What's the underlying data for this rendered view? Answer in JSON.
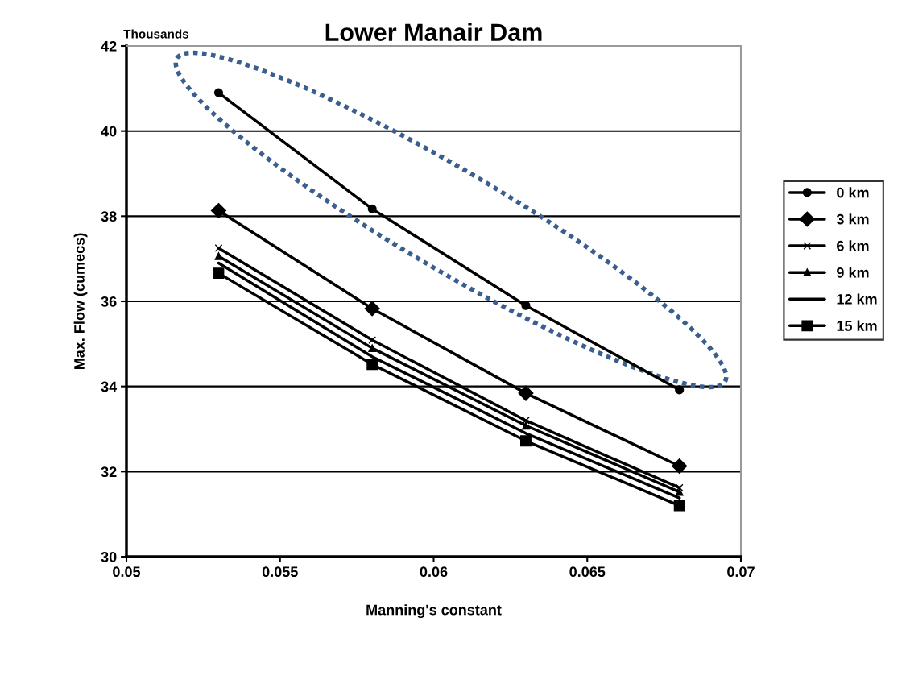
{
  "chart_data": {
    "type": "line",
    "title": "Lower Manair Dam",
    "xlabel": "Manning's constant",
    "ylabel": "Max. Flow (cumecs)",
    "annotations": [
      "Thousands"
    ],
    "x": [
      0.053,
      0.058,
      0.063,
      0.068
    ],
    "xlim": [
      0.05,
      0.07
    ],
    "xticks": [
      0.05,
      0.055,
      0.06,
      0.065,
      0.07
    ],
    "ylim": [
      30,
      42
    ],
    "yticks": [
      30,
      32,
      34,
      36,
      38,
      40,
      42
    ],
    "grid": "y",
    "legend": "right",
    "line_style": "solid",
    "series": [
      {
        "name": "0 km",
        "color": "#000000",
        "marker": "circle",
        "values": [
          40.9,
          38.17,
          35.9,
          33.92
        ]
      },
      {
        "name": "3 km",
        "color": "#000000",
        "marker": "diamond",
        "values": [
          38.13,
          35.83,
          33.84,
          32.13
        ]
      },
      {
        "name": "6 km",
        "color": "#000000",
        "marker": "cross",
        "values": [
          37.25,
          35.09,
          33.2,
          31.62
        ]
      },
      {
        "name": "9 km",
        "color": "#000000",
        "marker": "triangle",
        "values": [
          37.06,
          34.9,
          33.08,
          31.52
        ]
      },
      {
        "name": "12 km",
        "color": "#000000",
        "marker": "none",
        "values": [
          36.9,
          34.7,
          32.9,
          31.38
        ]
      },
      {
        "name": "15 km",
        "color": "#000000",
        "marker": "square",
        "values": [
          36.66,
          34.52,
          32.72,
          31.2
        ]
      }
    ]
  }
}
